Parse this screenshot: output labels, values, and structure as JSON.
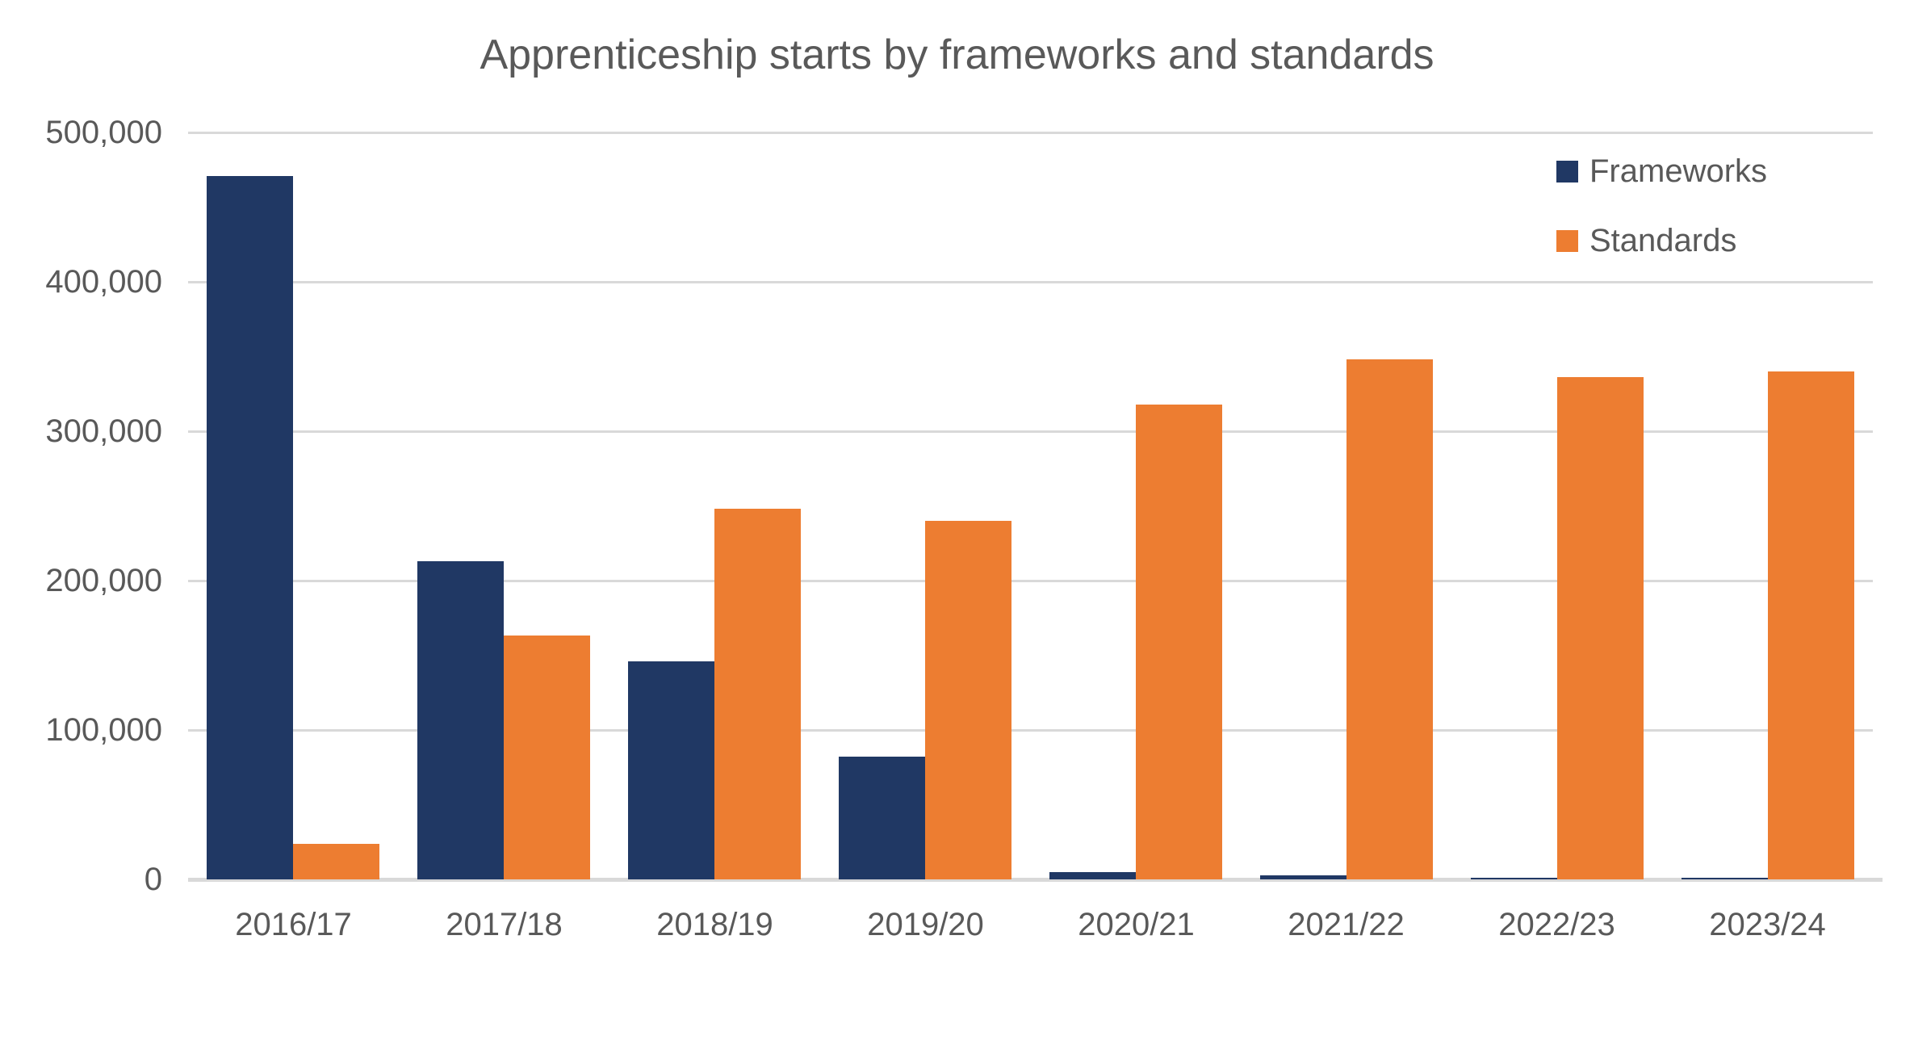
{
  "chart_data": {
    "type": "bar",
    "title": "Apprenticeship starts by frameworks and standards",
    "categories": [
      "2016/17",
      "2017/18",
      "2018/19",
      "2019/20",
      "2020/21",
      "2021/22",
      "2022/23",
      "2023/24"
    ],
    "series": [
      {
        "name": "Frameworks",
        "color": "#203864",
        "values": [
          471000,
          213000,
          146000,
          82000,
          5000,
          2500,
          1000,
          1200
        ]
      },
      {
        "name": "Standards",
        "color": "#ED7D31",
        "values": [
          24000,
          163000,
          248000,
          240000,
          318000,
          348000,
          336000,
          340000
        ]
      }
    ],
    "xlabel": "",
    "ylabel": "",
    "ylim": [
      0,
      500000
    ],
    "ytick_interval": 100000,
    "yticks": [
      {
        "value": 500000,
        "label": "500,000"
      },
      {
        "value": 400000,
        "label": "400,000"
      },
      {
        "value": 300000,
        "label": "300,000"
      },
      {
        "value": 200000,
        "label": "200,000"
      },
      {
        "value": 100000,
        "label": "100,000"
      },
      {
        "value": 0,
        "label": "0"
      }
    ],
    "grid": true,
    "legend_position": "top-right",
    "colors": {
      "text": "#595959",
      "gridline": "#D9D9D9",
      "axis_line": "#D9D9D9",
      "background": "#FFFFFF"
    }
  }
}
